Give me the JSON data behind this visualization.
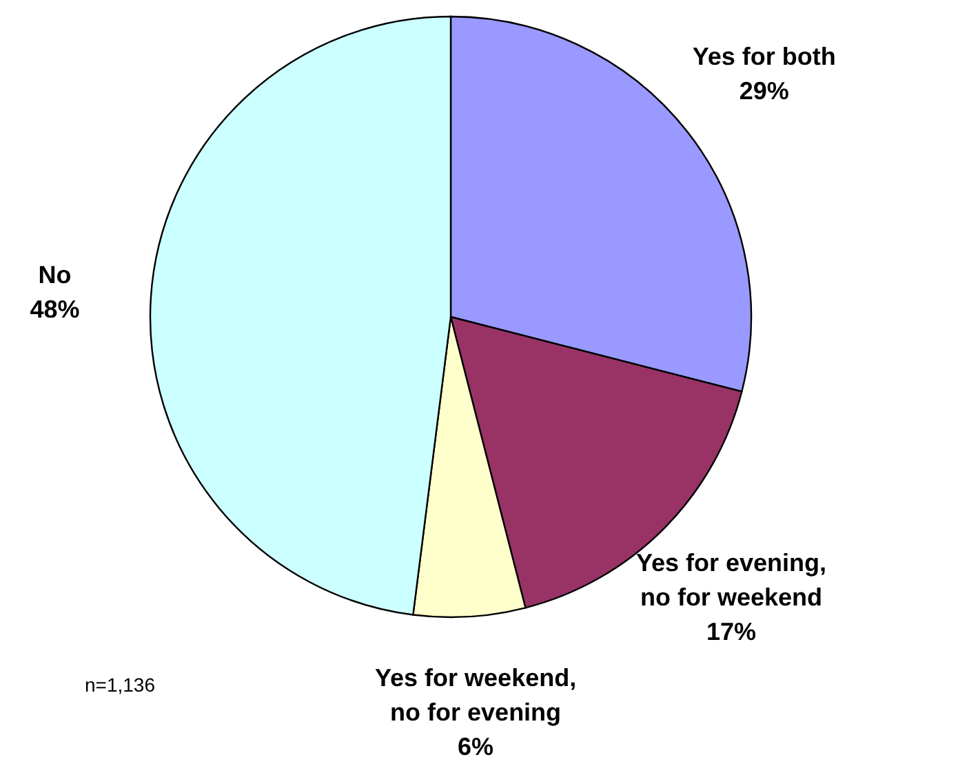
{
  "chart_data": {
    "type": "pie",
    "categories": [
      "Yes for both",
      "Yes for evening, no for weekend",
      "Yes for weekend, no for evening",
      "No"
    ],
    "values": [
      29,
      17,
      6,
      48
    ],
    "colors": [
      "#9999ff",
      "#993366",
      "#ffffcc",
      "#ccffff"
    ],
    "value_labels": [
      "29%",
      "17%",
      "6%",
      "48%"
    ],
    "annotations": [
      "n=1,136"
    ]
  }
}
